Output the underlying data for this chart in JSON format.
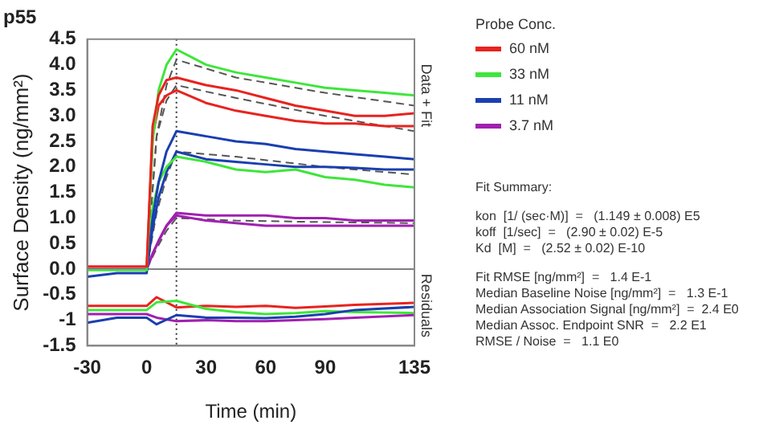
{
  "chart_data": {
    "type": "line",
    "title": "p55",
    "xlabel": "Time (min)",
    "ylabel": "Surface Density (ng/mm²)",
    "legend_title": "Probe Conc.",
    "legend": "right",
    "grid": false,
    "marker": "none",
    "line_style": "solid",
    "xlim": [
      -30,
      135
    ],
    "xticks": [
      -30,
      0,
      30,
      60,
      90,
      135
    ],
    "ylim": [
      -1.5,
      4.5
    ],
    "yticks": [
      -1.5,
      -1,
      -0.5,
      {
        "value": 0,
        "label": "0.0"
      },
      0.5,
      {
        "value": 1,
        "label": "1.0"
      },
      1.5,
      {
        "value": 2,
        "label": "2.0"
      },
      2.5,
      {
        "value": 3,
        "label": "3.0"
      },
      3.5,
      {
        "value": 4,
        "label": "4.0"
      },
      4.5
    ],
    "ref_lines": [
      {
        "axis": "y",
        "value": 0,
        "color": "#808080",
        "line_style": "solid"
      },
      {
        "axis": "x",
        "value": 15,
        "color": "#333333",
        "line_style": "dotted"
      }
    ],
    "annotations": [
      "Data + Fit",
      "Residuals",
      "Fit Summary:",
      "kon  [1/ (sec·M)]  =   (1.149 ± 0.008) E5",
      "koff  [1/sec]  =   (2.90 ± 0.02) E-5",
      "Kd  [M]  =   (2.52 ± 0.02) E-10",
      "Fit RMSE [ng/mm²]  =   1.4 E-1",
      "Median Baseline Noise [ng/mm²]  =   1.3 E-1",
      "Median Association Signal [ng/mm²]  =  2.4 E0",
      "Median Assoc. Endpoint SNR  =   2.2 E1",
      "RMSE / Noise  =   1.1 E0"
    ],
    "series": [
      {
        "name": "60 nM",
        "color": "#e8231f",
        "x": [
          -30,
          -15,
          0,
          3,
          6,
          10,
          15,
          30,
          45,
          60,
          75,
          90,
          105,
          120,
          135
        ],
        "values": [
          0.05,
          0.05,
          0.05,
          2.8,
          3.4,
          3.7,
          3.75,
          3.6,
          3.5,
          3.35,
          3.2,
          3.1,
          3.0,
          3.0,
          3.05
        ]
      },
      {
        "name": "33 nM",
        "color": "#3ee63a",
        "x": [
          -30,
          -15,
          0,
          3,
          6,
          10,
          15,
          30,
          45,
          60,
          75,
          90,
          105,
          120,
          135
        ],
        "values": [
          -0.02,
          -0.02,
          -0.02,
          2.5,
          3.5,
          4.0,
          4.3,
          4.0,
          3.85,
          3.75,
          3.65,
          3.55,
          3.5,
          3.45,
          3.4
        ]
      },
      {
        "name": "11 nM",
        "color": "#1a3fb0",
        "x": [
          -30,
          -15,
          0,
          3,
          6,
          10,
          15,
          30,
          45,
          60,
          75,
          90,
          105,
          120,
          135
        ],
        "values": [
          -0.15,
          -0.08,
          -0.08,
          1.0,
          1.7,
          2.3,
          2.7,
          2.6,
          2.5,
          2.45,
          2.35,
          2.3,
          2.25,
          2.2,
          2.15
        ]
      },
      {
        "name": "3.7 nM",
        "color": "#a020b0",
        "x": [
          0,
          3,
          6,
          10,
          15,
          30,
          45,
          60,
          75,
          90,
          105,
          120,
          135
        ],
        "values": [
          0,
          0.3,
          0.55,
          0.85,
          1.1,
          1.05,
          1.05,
          1.05,
          1.0,
          1.0,
          0.95,
          0.95,
          0.95
        ]
      },
      {
        "color": "#e8231f",
        "x": [
          0,
          3,
          6,
          10,
          15,
          30,
          45,
          60,
          75,
          90,
          105,
          120,
          135
        ],
        "values": [
          0,
          2.6,
          3.2,
          3.4,
          3.5,
          3.25,
          3.1,
          3.0,
          2.9,
          2.85,
          2.85,
          2.8,
          2.8
        ]
      },
      {
        "color": "#3ee63a",
        "x": [
          0,
          3,
          6,
          10,
          15,
          30,
          45,
          60,
          75,
          90,
          105,
          120,
          135
        ],
        "values": [
          0,
          1.2,
          1.7,
          2.0,
          2.2,
          2.1,
          1.95,
          1.9,
          1.95,
          1.8,
          1.75,
          1.65,
          1.6
        ]
      },
      {
        "color": "#1a3fb0",
        "x": [
          0,
          3,
          6,
          10,
          15,
          30,
          45,
          60,
          75,
          90,
          105,
          120,
          135
        ],
        "values": [
          0,
          0.8,
          1.4,
          1.9,
          2.3,
          2.15,
          2.1,
          2.05,
          2.0,
          2.0,
          1.98,
          1.95,
          1.95
        ]
      },
      {
        "color": "#a020b0",
        "x": [
          -30,
          -15,
          0,
          3,
          6,
          10,
          15,
          30,
          45,
          60,
          75,
          90,
          105,
          120,
          135
        ],
        "values": [
          0,
          0,
          0,
          0.3,
          0.55,
          0.85,
          1.05,
          0.95,
          0.9,
          0.85,
          0.85,
          0.85,
          0.85,
          0.85,
          0.85
        ]
      },
      {
        "color": "#555555",
        "line_style": "dashed",
        "x": [
          0,
          5,
          10,
          15,
          45,
          90,
          135
        ],
        "values": [
          0,
          2.6,
          3.6,
          4.1,
          3.75,
          3.45,
          3.2
        ]
      },
      {
        "color": "#555555",
        "line_style": "dashed",
        "x": [
          0,
          5,
          10,
          15,
          45,
          90,
          135
        ],
        "values": [
          0,
          2.6,
          3.3,
          3.6,
          3.35,
          3.0,
          2.7
        ]
      },
      {
        "color": "#555555",
        "line_style": "dashed",
        "x": [
          0,
          5,
          10,
          15,
          45,
          90,
          135
        ],
        "values": [
          0,
          1.1,
          1.8,
          2.3,
          2.2,
          2.0,
          1.85
        ]
      },
      {
        "color": "#555555",
        "line_style": "dashed",
        "x": [
          0,
          5,
          10,
          15,
          45,
          90,
          135
        ],
        "values": [
          0,
          0.4,
          0.75,
          1.0,
          0.95,
          0.92,
          0.9
        ]
      },
      {
        "color": "#1a3fb0",
        "x": [
          -30,
          -15,
          0,
          5,
          15,
          30,
          45,
          60,
          75,
          90,
          105,
          135
        ],
        "values": [
          -1.05,
          -0.95,
          -0.95,
          -1.08,
          -0.9,
          -0.95,
          -0.95,
          -0.96,
          -0.93,
          -0.88,
          -0.8,
          -0.74
        ]
      },
      {
        "color": "#a020b0",
        "x": [
          -30,
          -15,
          0,
          5,
          15,
          30,
          45,
          60,
          75,
          90,
          105,
          135
        ],
        "values": [
          -0.88,
          -0.88,
          -0.88,
          -0.95,
          -1.02,
          -1.0,
          -1.02,
          -1.02,
          -1.0,
          -0.98,
          -0.95,
          -0.9
        ]
      },
      {
        "color": "#3ee63a",
        "x": [
          -30,
          -15,
          0,
          5,
          15,
          30,
          45,
          60,
          75,
          90,
          105,
          135
        ],
        "values": [
          -0.8,
          -0.8,
          -0.8,
          -0.65,
          -0.62,
          -0.78,
          -0.84,
          -0.88,
          -0.86,
          -0.82,
          -0.84,
          -0.86
        ]
      },
      {
        "color": "#e8231f",
        "x": [
          -30,
          -15,
          0,
          5,
          15,
          30,
          45,
          60,
          75,
          90,
          105,
          135
        ],
        "values": [
          -0.72,
          -0.72,
          -0.72,
          -0.55,
          -0.75,
          -0.72,
          -0.74,
          -0.72,
          -0.76,
          -0.73,
          -0.7,
          -0.66
        ]
      }
    ]
  }
}
